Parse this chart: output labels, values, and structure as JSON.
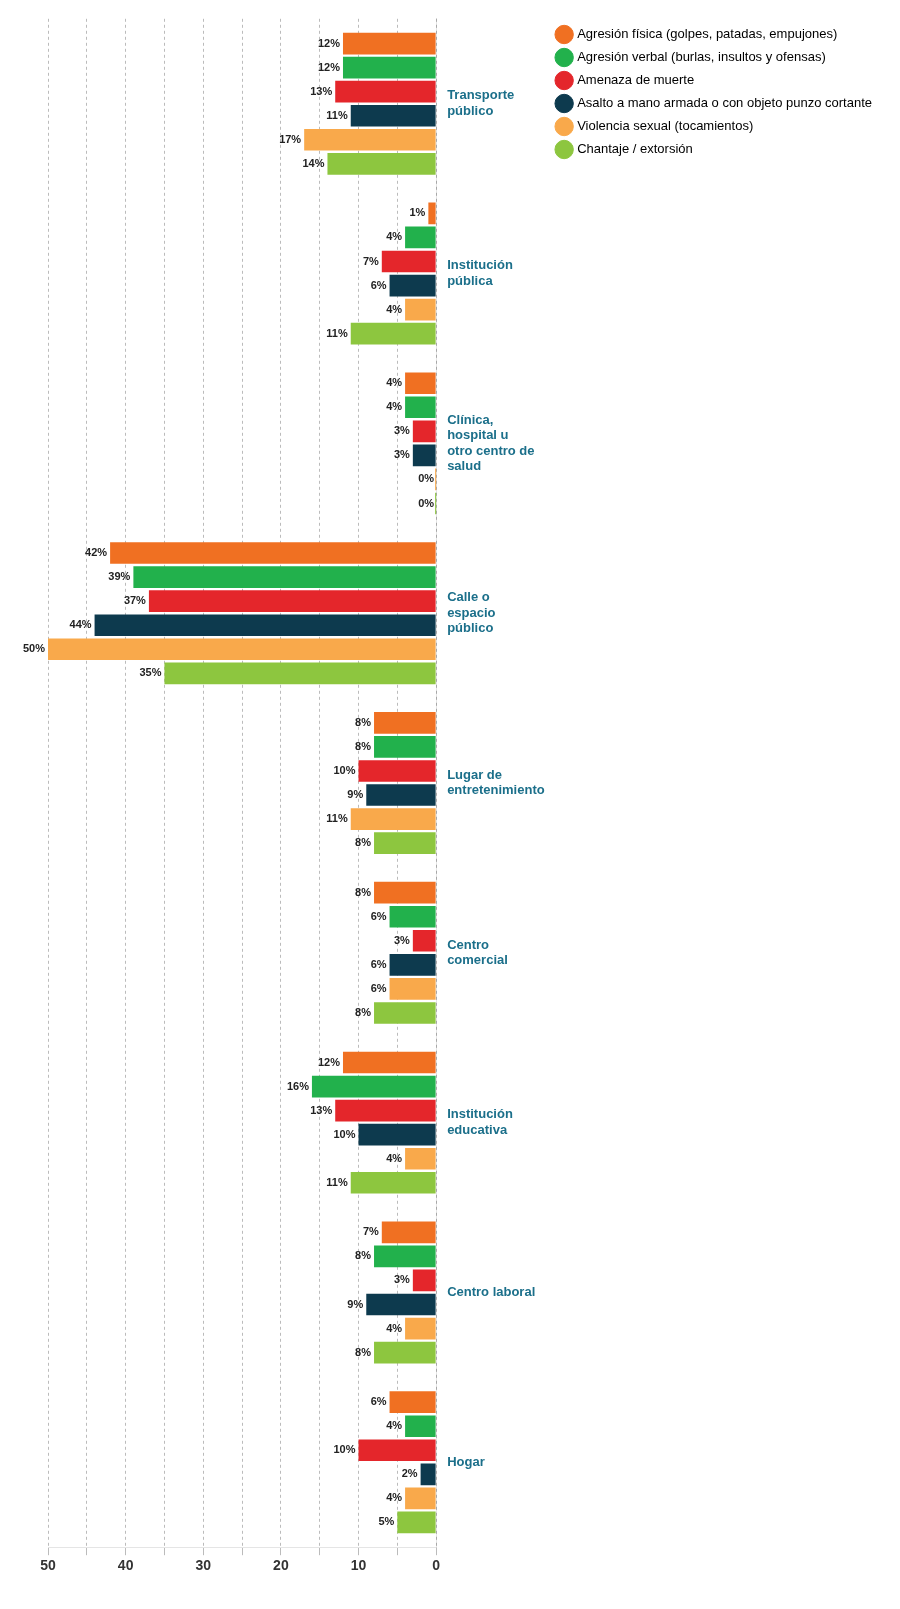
{
  "chart_data": {
    "type": "bar",
    "orientation": "horizontal",
    "categories": [
      "Transporte público",
      "Institución pública",
      "Clínica, hospital u otro centro de salud",
      "Calle o espacio público",
      "Lugar de entretenimiento",
      "Centro comercial",
      "Institución educativa",
      "Centro laboral",
      "Hogar"
    ],
    "series": [
      {
        "name": "Agresión física (golpes, patadas, empujones)",
        "color": "#f07022",
        "values": [
          12,
          1,
          4,
          42,
          8,
          8,
          12,
          7,
          6
        ],
        "value_labels": [
          "12%",
          "1%",
          "4%",
          "42%",
          "8%",
          "8%",
          "12%",
          "7%",
          "6%"
        ]
      },
      {
        "name": "Agresión verbal (burlas, insultos y ofensas)",
        "color": "#22b14c",
        "values": [
          12,
          4,
          4,
          39,
          8,
          6,
          16,
          8,
          4
        ],
        "value_labels": [
          "12%",
          "4%",
          "4%",
          "39%",
          "8%",
          "6%",
          "16%",
          "8%",
          "4%"
        ]
      },
      {
        "name": "Amenaza de muerte",
        "color": "#e4262b",
        "values": [
          13,
          7,
          3,
          37,
          10,
          3,
          13,
          3,
          10
        ],
        "value_labels": [
          "13%",
          "7%",
          "3%",
          "37%",
          "10%",
          "3%",
          "13%",
          "3%",
          "10%"
        ]
      },
      {
        "name": "Asalto a mano armada o con objeto punzo cortante",
        "color": "#0d3a4e",
        "values": [
          11,
          6,
          3,
          44,
          9,
          6,
          10,
          9,
          2
        ],
        "value_labels": [
          "11%",
          "6%",
          "3%",
          "44%",
          "9%",
          "6%",
          "10%",
          "9%",
          "2%"
        ]
      },
      {
        "name": "Violencia sexual (tocamientos)",
        "color": "#f9a94b",
        "values": [
          17,
          4,
          0,
          50,
          11,
          6,
          4,
          4,
          4
        ],
        "value_labels": [
          "17%",
          "4%",
          "0%",
          "50%",
          "11%",
          "6%",
          "4%",
          "4%",
          "4%"
        ]
      },
      {
        "name": "Chantaje / extorsión",
        "color": "#8dc63f",
        "values": [
          14,
          11,
          0,
          35,
          8,
          8,
          11,
          8,
          5
        ],
        "value_labels": [
          "14%",
          "11%",
          "0%",
          "35%",
          "8%",
          "8%",
          "11%",
          "8%",
          "5%"
        ]
      }
    ],
    "xlim": [
      50,
      0
    ],
    "xticks": [
      50,
      {
        "value": 45,
        "label": null
      },
      40,
      {
        "value": 35,
        "label": null
      },
      30,
      {
        "value": 25,
        "label": null
      },
      20,
      {
        "value": 15,
        "label": null
      },
      10,
      {
        "value": 5,
        "label": null
      },
      0
    ],
    "grid": "x",
    "legend": "right"
  }
}
